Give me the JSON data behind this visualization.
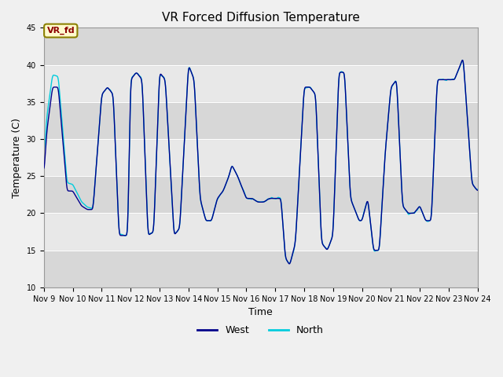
{
  "title": "VR Forced Diffusion Temperature",
  "xlabel": "Time",
  "ylabel": "Temperature (C)",
  "ylim": [
    10,
    45
  ],
  "xlim": [
    0,
    15
  ],
  "yticks": [
    10,
    15,
    20,
    25,
    30,
    35,
    40,
    45
  ],
  "xtick_labels": [
    "Nov 9",
    "Nov 10",
    "Nov 11",
    "Nov 12",
    "Nov 13",
    "Nov 14",
    "Nov 15",
    "Nov 16",
    "Nov 17",
    "Nov 18",
    "Nov 19",
    "Nov 20",
    "Nov 21",
    "Nov 22",
    "Nov 23",
    "Nov 24"
  ],
  "west_color": "#00008B",
  "north_color": "#00CCDD",
  "background_color": "#DCDCDC",
  "plot_bg_color": "#E8E8E8",
  "annotation_text": "VR_fd",
  "annotation_bg": "#FFFACD",
  "annotation_text_color": "#8B0000",
  "grid_color": "#FFFFFF",
  "legend_west": "West",
  "legend_north": "North"
}
